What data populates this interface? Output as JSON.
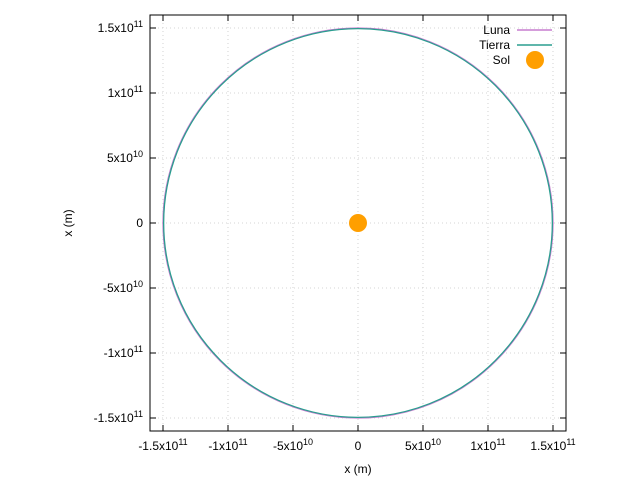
{
  "chart_data": {
    "type": "line",
    "title": "",
    "xlabel": "x (m)",
    "ylabel": "x (m)",
    "xlim": [
      -160000000000.0,
      160000000000.0
    ],
    "ylim": [
      -160000000000.0,
      160000000000.0
    ],
    "grid": true,
    "legend_position": "top-right",
    "x_ticks": [
      {
        "value": -150000000000.0,
        "mantissa": "-1.5x10",
        "exp": "11"
      },
      {
        "value": -100000000000.0,
        "mantissa": "-1x10",
        "exp": "11"
      },
      {
        "value": -50000000000.0,
        "mantissa": "-5x10",
        "exp": "10"
      },
      {
        "value": 0,
        "mantissa": "0",
        "exp": ""
      },
      {
        "value": 50000000000.0,
        "mantissa": "5x10",
        "exp": "10"
      },
      {
        "value": 100000000000.0,
        "mantissa": "1x10",
        "exp": "11"
      },
      {
        "value": 150000000000.0,
        "mantissa": "1.5x10",
        "exp": "11"
      }
    ],
    "y_ticks": [
      {
        "value": 150000000000.0,
        "mantissa": "1.5x10",
        "exp": "11"
      },
      {
        "value": 100000000000.0,
        "mantissa": "1x10",
        "exp": "11"
      },
      {
        "value": 50000000000.0,
        "mantissa": "5x10",
        "exp": "10"
      },
      {
        "value": 0,
        "mantissa": "0",
        "exp": ""
      },
      {
        "value": -50000000000.0,
        "mantissa": "-5x10",
        "exp": "10"
      },
      {
        "value": -100000000000.0,
        "mantissa": "-1x10",
        "exp": "11"
      },
      {
        "value": -150000000000.0,
        "mantissa": "-1.5x10",
        "exp": "11"
      }
    ],
    "series": [
      {
        "name": "Luna",
        "kind": "orbit",
        "color": "#c77dcf",
        "radius": 150000000000.0,
        "center": [
          0,
          0
        ]
      },
      {
        "name": "Tierra",
        "kind": "orbit",
        "color": "#2a9d8f",
        "radius": 149500000000.0,
        "center": [
          0,
          0
        ]
      },
      {
        "name": "Sol",
        "kind": "point",
        "color": "#ff9f00",
        "x": 0,
        "y": 0
      }
    ]
  }
}
